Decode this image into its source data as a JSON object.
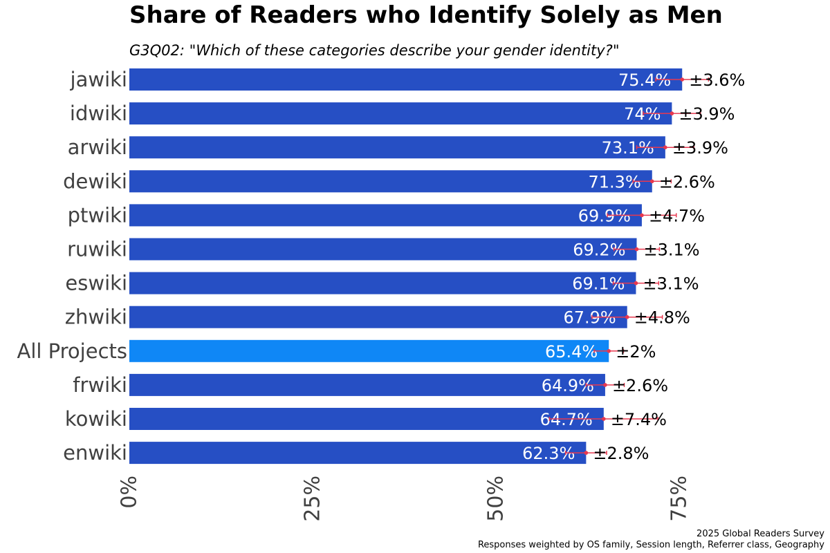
{
  "chart_data": {
    "type": "bar",
    "orientation": "horizontal",
    "title": "Share of Readers who Identify Solely as Men",
    "subtitle": "G3Q02: \"Which of these categories describe your gender identity?\"",
    "categories": [
      "jawiki",
      "idwiki",
      "arwiki",
      "dewiki",
      "ptwiki",
      "ruwiki",
      "eswiki",
      "zhwiki",
      "All Projects",
      "frwiki",
      "kowiki",
      "enwiki"
    ],
    "values": [
      75.4,
      74,
      73.1,
      71.3,
      69.9,
      69.2,
      69.1,
      67.9,
      65.4,
      64.9,
      64.7,
      62.3
    ],
    "value_labels": [
      "75.4%",
      "74%",
      "73.1%",
      "71.3%",
      "69.9%",
      "69.2%",
      "69.1%",
      "67.9%",
      "65.4%",
      "64.9%",
      "64.7%",
      "62.3%"
    ],
    "errors": [
      3.6,
      3.9,
      3.9,
      2.6,
      4.7,
      3.1,
      3.1,
      4.8,
      2,
      2.6,
      7.4,
      2.8
    ],
    "error_labels": [
      "±3.6%",
      "±3.9%",
      "±3.9%",
      "±2.6%",
      "±4.7%",
      "±3.1%",
      "±3.1%",
      "±4.8%",
      "±2%",
      "±2.6%",
      "±7.4%",
      "±2.8%"
    ],
    "highlight_category": "All Projects",
    "xlim": [
      0,
      75
    ],
    "xticks": [
      0,
      25,
      50,
      75
    ],
    "xtick_labels": [
      "0%",
      "25%",
      "50%",
      "75%"
    ],
    "xlabel": "",
    "ylabel": "",
    "grid": false,
    "colors": {
      "bar": "#264fc4",
      "highlight_bar": "#0f87f6",
      "error_bar": "#e8384f",
      "bar_label": "#ffffff",
      "category_label": "#404040",
      "error_label": "#000000"
    }
  },
  "caption": {
    "line1": "2025 Global Readers Survey",
    "line2": "Responses weighted by OS family, Session length, Referrer class, Geography"
  }
}
